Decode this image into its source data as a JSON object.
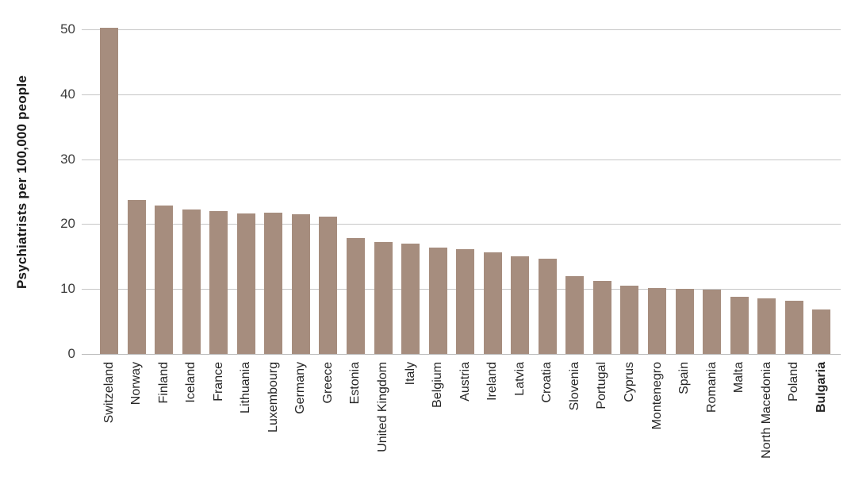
{
  "chart_data": {
    "type": "bar",
    "title": "",
    "xlabel": "",
    "ylabel": "Psychiatrists per 100,000 people",
    "ylim": [
      0,
      50.3
    ],
    "yticks": [
      0,
      10,
      20,
      30,
      40,
      50
    ],
    "grid": true,
    "legend": "none",
    "bar_color": "#a68d7e",
    "gridline_color": "#c6c6c6",
    "axis_line_color": "#b9b9b9",
    "text_color": "#262626",
    "categories": [
      "Switzeland",
      "Norway",
      "Finland",
      "Iceland",
      "France",
      "Lithuania",
      "Luxembourg",
      "Germany",
      "Greece",
      "Estonia",
      "United Kingdom",
      "Italy",
      "Belgium",
      "Austria",
      "Ireland",
      "Latvia",
      "Croatia",
      "Slovenia",
      "Portugal",
      "Cyprus",
      "Montenegro",
      "Spain",
      "Romania",
      "Malta",
      "North Macedonia",
      "Poland",
      "Bulgaria"
    ],
    "values": [
      50.3,
      23.7,
      22.9,
      22.3,
      22.0,
      21.6,
      21.8,
      21.5,
      21.2,
      17.8,
      17.3,
      17.0,
      16.4,
      16.2,
      15.6,
      15.1,
      14.7,
      12.0,
      11.2,
      10.5,
      10.2,
      10.0,
      9.9,
      8.8,
      8.6,
      8.2,
      6.8
    ],
    "bold_categories": [
      "Bulgaria"
    ]
  }
}
